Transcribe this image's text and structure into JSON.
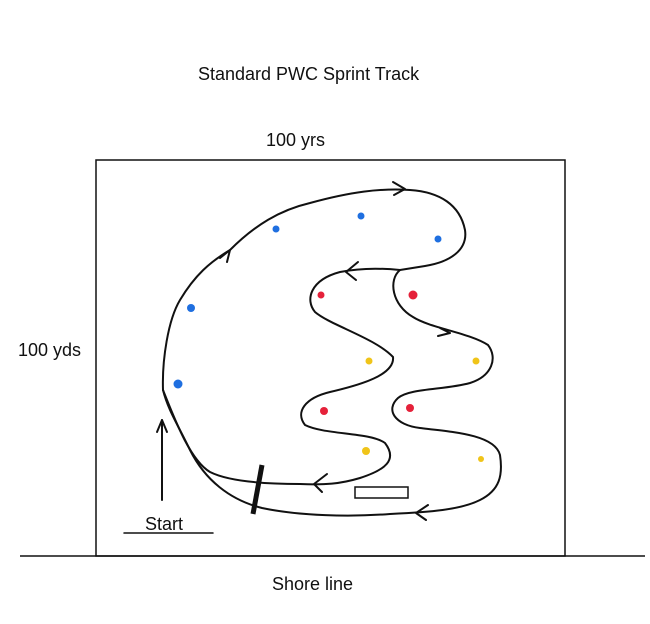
{
  "title": "Standard PWC Sprint Track",
  "width_label": "100 yrs",
  "height_label": "100 yds",
  "start_label": "Start",
  "shore_label": "Shore line",
  "colors": {
    "buoy_blue": "#1f6fe0",
    "buoy_red": "#e5213a",
    "buoy_yellow": "#f0c419",
    "line": "#111111"
  }
}
